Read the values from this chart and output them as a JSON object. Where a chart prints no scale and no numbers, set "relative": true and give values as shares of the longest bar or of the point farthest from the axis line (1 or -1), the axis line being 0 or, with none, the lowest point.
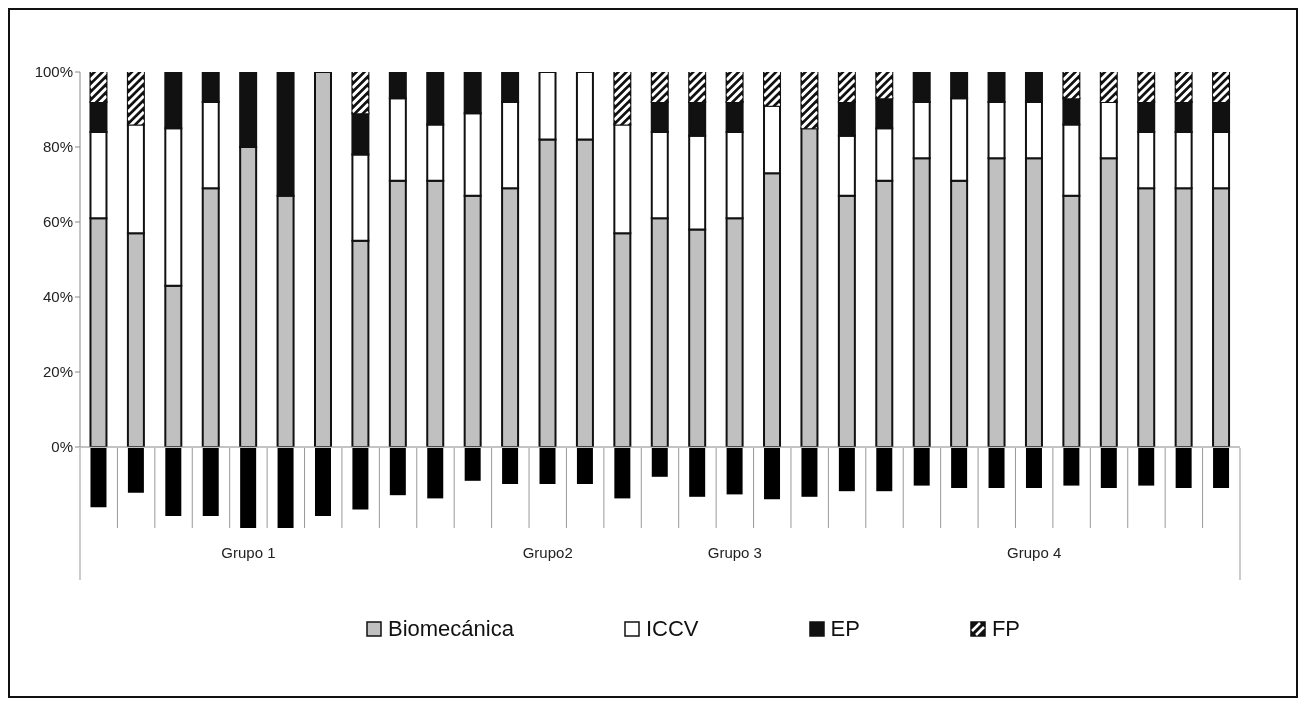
{
  "chart_data": [
    {
      "type": "bar",
      "stacked": true,
      "categories": [
        null,
        null,
        null,
        null,
        null,
        null,
        null,
        null,
        null,
        null,
        null,
        null,
        null,
        null,
        null,
        null,
        null,
        null,
        null,
        null,
        null,
        null,
        null,
        null,
        null,
        null,
        null,
        null,
        null,
        null,
        null
      ],
      "series": [
        {
          "name": "Biomecánica",
          "color": "#c0c0c0",
          "values": [
            61,
            57,
            43,
            69,
            80,
            67,
            100,
            55,
            71,
            71,
            67,
            69,
            82,
            82,
            57,
            61,
            58,
            61,
            73,
            85,
            67,
            71,
            77,
            71,
            77,
            77,
            67,
            77,
            69,
            69,
            69
          ]
        },
        {
          "name": "ICCV",
          "color": "#ffffff",
          "values": [
            23,
            29,
            42,
            23,
            0,
            0,
            0,
            23,
            22,
            15,
            22,
            23,
            18,
            18,
            29,
            23,
            25,
            23,
            18,
            0,
            16,
            14,
            15,
            22,
            15,
            15,
            19,
            15,
            15,
            15,
            15
          ]
        },
        {
          "name": "EP",
          "color": "#111111",
          "values": [
            8,
            0,
            15,
            8,
            20,
            33,
            0,
            11,
            7,
            14,
            11,
            8,
            0,
            0,
            0,
            8,
            9,
            8,
            0,
            0,
            9,
            8,
            8,
            7,
            8,
            8,
            7,
            0,
            8,
            8,
            8
          ]
        },
        {
          "name": "FP",
          "color": "#111111",
          "values": [
            8,
            14,
            0,
            0,
            0,
            0,
            0,
            11,
            0,
            0,
            0,
            0,
            0,
            0,
            14,
            8,
            8,
            8,
            9,
            15,
            8,
            7,
            0,
            0,
            0,
            0,
            7,
            8,
            8,
            8,
            8
          ]
        }
      ],
      "ylim": [
        0,
        100
      ],
      "yticks": [
        {
          "value": 0,
          "label": "0%"
        },
        {
          "value": 20,
          "label": "20%"
        },
        {
          "value": 40,
          "label": "40%"
        },
        {
          "value": 60,
          "label": "60%"
        },
        {
          "value": 80,
          "label": "80%"
        },
        {
          "value": 100,
          "label": "100%"
        }
      ],
      "tick_labels": "y",
      "legend": "bottom"
    },
    {
      "type": "bar",
      "relative": true,
      "color": "#000000",
      "grid": "x",
      "categories": [
        null,
        null,
        null,
        null,
        "Grupo 1",
        null,
        null,
        null,
        null,
        null,
        null,
        null,
        "Grupo2",
        null,
        null,
        null,
        null,
        "Grupo 3",
        null,
        null,
        null,
        null,
        null,
        null,
        null,
        "Grupo 4",
        null,
        null,
        null,
        null,
        null
      ],
      "values": [
        -0.74,
        -0.56,
        -0.85,
        -0.85,
        -1,
        -1,
        -0.85,
        -0.77,
        -0.59,
        -0.63,
        -0.41,
        -0.45,
        -0.45,
        -0.45,
        -0.63,
        -0.36,
        -0.61,
        -0.58,
        -0.64,
        -0.61,
        -0.54,
        -0.54,
        -0.47,
        -0.5,
        -0.5,
        -0.5,
        -0.47,
        -0.5,
        -0.47,
        -0.5,
        -0.5
      ]
    }
  ]
}
